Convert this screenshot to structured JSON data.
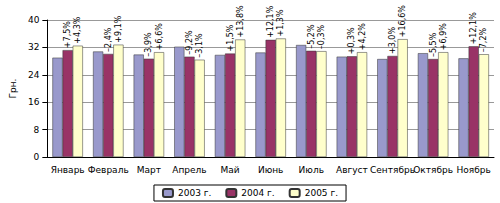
{
  "chart_data": {
    "type": "bar",
    "y_label": "Грн.",
    "categories": [
      "Январь",
      "Февраль",
      "Март",
      "Апрель",
      "Май",
      "Июнь",
      "Июль",
      "Август",
      "Сентябрь",
      "Октябрь",
      "Ноябрь"
    ],
    "series": [
      {
        "name": "2003 г.",
        "color": "#9999cc",
        "values": [
          29.0,
          30.8,
          29.9,
          32.2,
          29.8,
          30.5,
          32.7,
          29.3,
          28.6,
          30.3,
          28.8
        ]
      },
      {
        "name": "2004 г.",
        "color": "#993366",
        "values": [
          31.2,
          30.1,
          28.7,
          29.3,
          30.2,
          34.2,
          31.0,
          29.4,
          29.5,
          28.6,
          32.3
        ],
        "annotations": [
          "+7,5%",
          "–2,4%",
          "–3,9%",
          "–9,2%",
          "+1,5%",
          "+12,1%",
          "–5,2%",
          "+0,3%",
          "+3,0%",
          "–5,5%",
          "+12,1%"
        ]
      },
      {
        "name": "2005 г.",
        "color": "#ffffcc",
        "values": [
          32.5,
          32.8,
          30.6,
          28.4,
          34.3,
          34.6,
          30.9,
          30.6,
          34.4,
          30.6,
          30.0
        ],
        "annotations": [
          "+4,3%",
          "+9,1%",
          "+6,6%",
          "–3,1%",
          "+13,8%",
          "+1,3%",
          "–0,3%",
          "+4,2%",
          "+16,6%",
          "+6,9%",
          "–7,2%"
        ]
      }
    ],
    "ylim": [
      0,
      40
    ],
    "yticks": [
      0,
      8,
      16,
      24,
      32,
      40
    ],
    "grid": true,
    "legend": "bottom"
  }
}
